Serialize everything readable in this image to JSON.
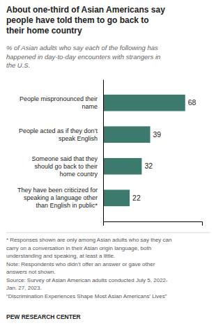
{
  "chart_data": {
    "type": "bar",
    "orientation": "horizontal",
    "title": "About one-third of Asian Americans say\npeople have told them to go back to\ntheir home country",
    "subtitle": "% of Asian adults who say each of the following has\nhappened in day-to-day encounters with strangers in\nthe U.S.",
    "categories": [
      "People mispronounced their\nname",
      "People acted as if they don’t\nspeak English",
      "Someone said that they\nshould go back to their\nhome country",
      "They have been criticized for\nspeaking a language other\nthan English in public*"
    ],
    "values": [
      68,
      39,
      32,
      22
    ],
    "color": "#3d7a6e",
    "xlim": [
      0,
      82
    ],
    "xticks": [],
    "tick_labels": "y",
    "data_labels": true,
    "footnote": "* Responses shown are only among Asian adults who say they can\ncarry on a conversation in their Asian origin language, both\nunderstanding and speaking, at least a little.\nNote: Respondents who didn’t offer an answer or gave other\nanswers not shown.\nSource: Survey of Asian American adults conducted July 5, 2022-\nJan. 27, 2023.\n“Discrimination Experiences Shape Most Asian Americans’ Lives”",
    "source": "PEW RESEARCH CENTER"
  }
}
